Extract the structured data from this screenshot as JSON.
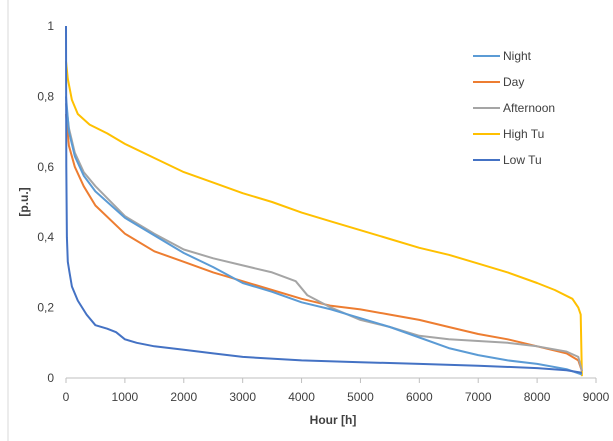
{
  "chart_data": {
    "type": "line",
    "xlabel": "Hour [h]",
    "ylabel": "[p.u.]",
    "xlim": [
      0,
      9000
    ],
    "ylim": [
      0,
      1
    ],
    "x_ticks": [
      "0",
      "1000",
      "2000",
      "3000",
      "4000",
      "5000",
      "6000",
      "7000",
      "8000",
      "9000"
    ],
    "y_ticks": [
      "0",
      "0,2",
      "0,4",
      "0,6",
      "0,8",
      "1"
    ],
    "grid": false,
    "legend_position": "top-right",
    "series": [
      {
        "name": "Night",
        "color": "#5B9BD5",
        "points": [
          [
            0,
            0.8
          ],
          [
            50,
            0.7
          ],
          [
            150,
            0.63
          ],
          [
            300,
            0.575
          ],
          [
            500,
            0.53
          ],
          [
            1000,
            0.455
          ],
          [
            1500,
            0.405
          ],
          [
            2000,
            0.355
          ],
          [
            2500,
            0.315
          ],
          [
            3000,
            0.27
          ],
          [
            3500,
            0.245
          ],
          [
            4000,
            0.215
          ],
          [
            4500,
            0.195
          ],
          [
            5000,
            0.17
          ],
          [
            5500,
            0.145
          ],
          [
            6000,
            0.115
          ],
          [
            6500,
            0.085
          ],
          [
            7000,
            0.065
          ],
          [
            7500,
            0.05
          ],
          [
            8000,
            0.04
          ],
          [
            8500,
            0.025
          ],
          [
            8760,
            0.01
          ]
        ]
      },
      {
        "name": "Day",
        "color": "#ED7D31",
        "points": [
          [
            0,
            0.75
          ],
          [
            50,
            0.66
          ],
          [
            150,
            0.6
          ],
          [
            300,
            0.545
          ],
          [
            500,
            0.49
          ],
          [
            1000,
            0.41
          ],
          [
            1500,
            0.36
          ],
          [
            2000,
            0.33
          ],
          [
            2500,
            0.3
          ],
          [
            3000,
            0.275
          ],
          [
            3500,
            0.25
          ],
          [
            4000,
            0.225
          ],
          [
            4500,
            0.205
          ],
          [
            5000,
            0.195
          ],
          [
            5500,
            0.18
          ],
          [
            6000,
            0.165
          ],
          [
            6500,
            0.145
          ],
          [
            7000,
            0.125
          ],
          [
            7500,
            0.11
          ],
          [
            8000,
            0.09
          ],
          [
            8500,
            0.07
          ],
          [
            8700,
            0.05
          ],
          [
            8760,
            0.02
          ]
        ]
      },
      {
        "name": "Afternoon",
        "color": "#A5A5A5",
        "points": [
          [
            0,
            0.78
          ],
          [
            50,
            0.71
          ],
          [
            150,
            0.64
          ],
          [
            300,
            0.585
          ],
          [
            500,
            0.545
          ],
          [
            1000,
            0.46
          ],
          [
            1500,
            0.41
          ],
          [
            2000,
            0.365
          ],
          [
            2500,
            0.34
          ],
          [
            3000,
            0.32
          ],
          [
            3500,
            0.3
          ],
          [
            3900,
            0.275
          ],
          [
            4100,
            0.235
          ],
          [
            4500,
            0.2
          ],
          [
            5000,
            0.165
          ],
          [
            5500,
            0.145
          ],
          [
            6000,
            0.12
          ],
          [
            6500,
            0.11
          ],
          [
            7000,
            0.105
          ],
          [
            7500,
            0.1
          ],
          [
            8000,
            0.09
          ],
          [
            8500,
            0.075
          ],
          [
            8700,
            0.06
          ],
          [
            8760,
            0.02
          ]
        ]
      },
      {
        "name": "High Tu",
        "color": "#FFC000",
        "points": [
          [
            0,
            0.9
          ],
          [
            30,
            0.85
          ],
          [
            100,
            0.79
          ],
          [
            200,
            0.75
          ],
          [
            400,
            0.72
          ],
          [
            700,
            0.695
          ],
          [
            1000,
            0.665
          ],
          [
            1500,
            0.625
          ],
          [
            2000,
            0.585
          ],
          [
            2500,
            0.555
          ],
          [
            3000,
            0.525
          ],
          [
            3500,
            0.5
          ],
          [
            4000,
            0.47
          ],
          [
            4500,
            0.445
          ],
          [
            5000,
            0.42
          ],
          [
            5500,
            0.395
          ],
          [
            6000,
            0.37
          ],
          [
            6500,
            0.35
          ],
          [
            7000,
            0.325
          ],
          [
            7500,
            0.3
          ],
          [
            8000,
            0.27
          ],
          [
            8300,
            0.25
          ],
          [
            8600,
            0.225
          ],
          [
            8700,
            0.2
          ],
          [
            8740,
            0.18
          ],
          [
            8760,
            0.005
          ]
        ]
      },
      {
        "name": "Low Tu",
        "color": "#4472C4",
        "points": [
          [
            0,
            1.0
          ],
          [
            5,
            0.6
          ],
          [
            15,
            0.4
          ],
          [
            30,
            0.33
          ],
          [
            60,
            0.3
          ],
          [
            100,
            0.26
          ],
          [
            200,
            0.22
          ],
          [
            350,
            0.18
          ],
          [
            500,
            0.15
          ],
          [
            700,
            0.14
          ],
          [
            850,
            0.13
          ],
          [
            1000,
            0.11
          ],
          [
            1200,
            0.1
          ],
          [
            1500,
            0.09
          ],
          [
            2000,
            0.08
          ],
          [
            2500,
            0.07
          ],
          [
            3000,
            0.06
          ],
          [
            4000,
            0.05
          ],
          [
            5000,
            0.045
          ],
          [
            6000,
            0.04
          ],
          [
            7000,
            0.035
          ],
          [
            8000,
            0.028
          ],
          [
            8500,
            0.022
          ],
          [
            8760,
            0.015
          ]
        ]
      }
    ]
  }
}
